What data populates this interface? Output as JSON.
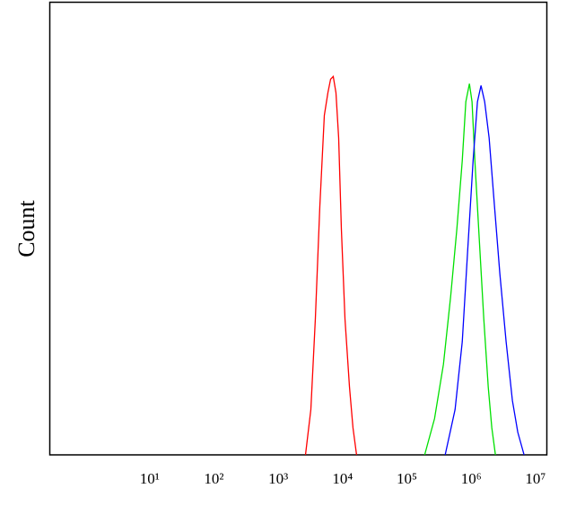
{
  "chart_data": {
    "type": "line",
    "y_label": "Count",
    "log_x": true,
    "xlim": [
      0.28,
      15000000
    ],
    "ylim": [
      0,
      100
    ],
    "xticks": [
      {
        "value": 10,
        "label": "10¹"
      },
      {
        "value": 100,
        "label": "10²"
      },
      {
        "value": 1000,
        "label": "10³"
      },
      {
        "value": 10000,
        "label": "10⁴"
      },
      {
        "value": 100000,
        "label": "10⁵"
      },
      {
        "value": 1000000,
        "label": "10⁶"
      },
      {
        "value": 10000000,
        "label": "10⁷"
      }
    ],
    "series": [
      {
        "color": "#ff0000",
        "x": [
          2650,
          3210,
          3770,
          4430,
          5200,
          5910,
          6510,
          7160,
          7890,
          8690,
          9570,
          10900,
          12800,
          14500,
          16500
        ],
        "values": [
          0,
          10,
          30,
          55,
          75,
          80,
          83,
          83.6,
          80,
          70,
          50,
          30,
          15,
          6,
          0
        ]
      },
      {
        "color": "#00e000",
        "x": [
          189000,
          269000,
          370000,
          479000,
          599000,
          726000,
          825000,
          938000,
          1030000,
          1140000,
          1330000,
          1570000,
          1840000,
          2090000,
          2380000
        ],
        "values": [
          0,
          8,
          20,
          35,
          50,
          65,
          78,
          82,
          78,
          65,
          48,
          30,
          15,
          6,
          0
        ]
      },
      {
        "color": "#0000ff",
        "x": [
          394000,
          561000,
          726000,
          880000,
          1070000,
          1250000,
          1420000,
          1620000,
          1900000,
          2300000,
          2790000,
          3490000,
          4370000,
          5300000,
          6640000
        ],
        "values": [
          0,
          10,
          25,
          45,
          65,
          78,
          81.6,
          78,
          70,
          55,
          40,
          25,
          12,
          5,
          0
        ]
      }
    ]
  }
}
